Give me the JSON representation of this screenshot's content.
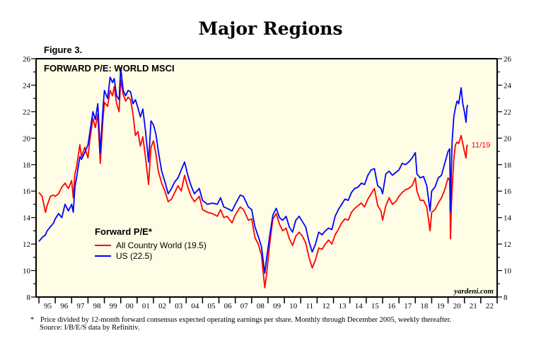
{
  "page": {
    "title": "Major Regions",
    "figure_label": "Figure 3.",
    "footnote_marker": "*",
    "footnote_line1": "Price divided by 12-month forward consensus expected operating earnings per share. Monthly through December 2005, weekly thereafter.",
    "footnote_line2": "Source: I/B/E/S data by Refinitiv."
  },
  "chart_data": {
    "type": "line",
    "title": "FORWARD P/E: WORLD MSCI",
    "xlabel": "",
    "ylabel": "",
    "ylim": [
      8,
      26
    ],
    "xlim": [
      1995,
      2023
    ],
    "y_ticks": [
      8,
      10,
      12,
      14,
      16,
      18,
      20,
      22,
      24,
      26
    ],
    "y_ticks_right": [
      8,
      10,
      12,
      14,
      16,
      18,
      20,
      22,
      24,
      26
    ],
    "x_tick_labels": [
      "95",
      "96",
      "97",
      "98",
      "99",
      "00",
      "01",
      "02",
      "03",
      "04",
      "05",
      "06",
      "07",
      "08",
      "09",
      "10",
      "11",
      "12",
      "13",
      "14",
      "15",
      "16",
      "17",
      "18",
      "19",
      "20",
      "21",
      "22"
    ],
    "grid": false,
    "background": "#fffde6",
    "legend": {
      "title": "Forward P/E*",
      "placement": "center-left",
      "entries": [
        "All Country World (19.5)",
        "US (22.5)"
      ]
    },
    "annotations": [
      {
        "text": "11/19",
        "x": 2021.3,
        "y": 19.5,
        "color": "#ff0000"
      }
    ],
    "watermark": "yardeni.com",
    "series": [
      {
        "name": "All Country World (19.5)",
        "color": "#ff0000",
        "x": [
          1995.0,
          1995.2,
          1995.4,
          1995.5,
          1995.7,
          1995.9,
          1996.0,
          1996.2,
          1996.4,
          1996.6,
          1996.8,
          1997.0,
          1997.1,
          1997.2,
          1997.3,
          1997.5,
          1997.6,
          1997.8,
          1998.0,
          1998.1,
          1998.3,
          1998.45,
          1998.6,
          1998.75,
          1998.9,
          1999.0,
          1999.2,
          1999.35,
          1999.5,
          1999.6,
          1999.75,
          1999.9,
          2000.0,
          2000.15,
          2000.3,
          2000.45,
          2000.6,
          2000.75,
          2000.9,
          2001.05,
          2001.2,
          2001.35,
          2001.5,
          2001.7,
          2001.85,
          2002.0,
          2002.15,
          2002.3,
          2002.5,
          2002.7,
          2002.9,
          2003.1,
          2003.3,
          2003.5,
          2003.7,
          2003.9,
          2004.1,
          2004.3,
          2004.5,
          2004.8,
          2005.0,
          2005.3,
          2005.6,
          2005.9,
          2006.1,
          2006.3,
          2006.5,
          2006.8,
          2007.0,
          2007.3,
          2007.5,
          2007.8,
          2008.0,
          2008.2,
          2008.4,
          2008.6,
          2008.8,
          2008.9,
          2009.1,
          2009.3,
          2009.5,
          2009.7,
          2009.9,
          2010.1,
          2010.3,
          2010.5,
          2010.7,
          2010.9,
          2011.1,
          2011.3,
          2011.5,
          2011.7,
          2011.9,
          2012.1,
          2012.3,
          2012.5,
          2012.7,
          2012.9,
          2013.1,
          2013.3,
          2013.5,
          2013.7,
          2013.9,
          2014.1,
          2014.3,
          2014.5,
          2014.7,
          2014.9,
          2015.1,
          2015.3,
          2015.5,
          2015.7,
          2015.9,
          2016.0,
          2016.2,
          2016.4,
          2016.6,
          2016.8,
          2017.0,
          2017.2,
          2017.4,
          2017.6,
          2017.8,
          2018.0,
          2018.1,
          2018.3,
          2018.5,
          2018.7,
          2018.9,
          2019.0,
          2019.2,
          2019.4,
          2019.6,
          2019.8,
          2020.0,
          2020.1,
          2020.15,
          2020.2,
          2020.25,
          2020.35,
          2020.45,
          2020.55,
          2020.65,
          2020.8,
          2020.9,
          2021.0,
          2021.1,
          2021.15,
          2021.2
        ],
        "values": [
          15.9,
          15.6,
          14.4,
          14.9,
          15.6,
          15.7,
          15.6,
          15.8,
          16.3,
          16.6,
          16.2,
          16.8,
          15.5,
          17.3,
          17.8,
          19.5,
          18.6,
          19.3,
          18.5,
          19.7,
          21.5,
          20.8,
          21.8,
          18.1,
          21.2,
          22.7,
          22.4,
          23.6,
          23.2,
          23.9,
          22.6,
          22.0,
          24.4,
          23.3,
          22.8,
          23.1,
          22.9,
          21.8,
          20.2,
          20.5,
          19.4,
          20.1,
          18.7,
          16.5,
          19.3,
          19.8,
          18.8,
          17.5,
          16.6,
          16.0,
          15.2,
          15.4,
          15.9,
          16.4,
          16.0,
          17.2,
          16.3,
          15.6,
          15.2,
          15.6,
          14.6,
          14.4,
          14.3,
          14.1,
          14.6,
          14.0,
          14.1,
          13.6,
          14.2,
          14.8,
          14.6,
          13.8,
          13.9,
          12.5,
          12.0,
          11.2,
          8.7,
          9.6,
          12.0,
          13.9,
          14.3,
          13.5,
          13.0,
          13.2,
          12.4,
          11.9,
          12.6,
          12.9,
          12.6,
          12.1,
          11.0,
          10.2,
          10.8,
          11.7,
          11.6,
          12.0,
          12.3,
          12.0,
          12.7,
          13.1,
          13.6,
          13.9,
          13.8,
          14.4,
          14.7,
          14.9,
          15.1,
          14.8,
          15.4,
          15.8,
          16.2,
          14.9,
          14.5,
          13.8,
          14.9,
          15.5,
          15.0,
          15.2,
          15.6,
          15.9,
          16.1,
          16.2,
          16.4,
          17.0,
          16.0,
          15.3,
          15.3,
          14.8,
          13.0,
          14.4,
          14.6,
          15.1,
          15.5,
          16.1,
          17.0,
          16.8,
          12.4,
          14.8,
          16.2,
          18.4,
          19.5,
          19.7,
          19.6,
          20.2,
          19.6,
          19.0,
          18.5,
          19.4,
          19.5
        ]
      },
      {
        "name": "US (22.5)",
        "color": "#0000ff",
        "x": [
          1995.0,
          1995.2,
          1995.4,
          1995.5,
          1995.7,
          1995.9,
          1996.0,
          1996.2,
          1996.4,
          1996.6,
          1996.8,
          1997.0,
          1997.1,
          1997.2,
          1997.3,
          1997.5,
          1997.6,
          1997.8,
          1998.0,
          1998.1,
          1998.3,
          1998.45,
          1998.6,
          1998.75,
          1998.9,
          1999.0,
          1999.2,
          1999.35,
          1999.5,
          1999.6,
          1999.75,
          1999.9,
          2000.0,
          2000.15,
          2000.3,
          2000.45,
          2000.6,
          2000.75,
          2000.9,
          2001.05,
          2001.2,
          2001.35,
          2001.5,
          2001.7,
          2001.85,
          2002.0,
          2002.15,
          2002.3,
          2002.5,
          2002.7,
          2002.9,
          2003.1,
          2003.3,
          2003.5,
          2003.7,
          2003.9,
          2004.1,
          2004.3,
          2004.5,
          2004.8,
          2005.0,
          2005.3,
          2005.6,
          2005.9,
          2006.1,
          2006.3,
          2006.5,
          2006.8,
          2007.0,
          2007.3,
          2007.5,
          2007.8,
          2008.0,
          2008.2,
          2008.4,
          2008.6,
          2008.8,
          2008.9,
          2009.1,
          2009.3,
          2009.5,
          2009.7,
          2009.9,
          2010.1,
          2010.3,
          2010.5,
          2010.7,
          2010.9,
          2011.1,
          2011.3,
          2011.5,
          2011.7,
          2011.9,
          2012.1,
          2012.3,
          2012.5,
          2012.7,
          2012.9,
          2013.1,
          2013.3,
          2013.5,
          2013.7,
          2013.9,
          2014.1,
          2014.3,
          2014.5,
          2014.7,
          2014.9,
          2015.1,
          2015.3,
          2015.5,
          2015.7,
          2015.9,
          2016.0,
          2016.2,
          2016.4,
          2016.6,
          2016.8,
          2017.0,
          2017.2,
          2017.4,
          2017.6,
          2017.8,
          2018.0,
          2018.1,
          2018.3,
          2018.5,
          2018.7,
          2018.9,
          2019.0,
          2019.2,
          2019.4,
          2019.6,
          2019.8,
          2020.0,
          2020.1,
          2020.15,
          2020.2,
          2020.25,
          2020.35,
          2020.45,
          2020.55,
          2020.65,
          2020.8,
          2020.9,
          2021.0,
          2021.1,
          2021.15,
          2021.2
        ],
        "values": [
          12.2,
          12.5,
          12.7,
          13.0,
          13.3,
          13.6,
          13.9,
          14.3,
          14.0,
          15.0,
          14.5,
          15.0,
          14.4,
          16.3,
          17.0,
          18.6,
          18.4,
          18.9,
          19.5,
          20.3,
          22.0,
          21.4,
          22.6,
          18.9,
          22.0,
          23.6,
          23.0,
          24.6,
          24.2,
          24.5,
          23.2,
          22.9,
          25.3,
          23.6,
          23.2,
          23.6,
          23.5,
          22.6,
          22.9,
          22.3,
          21.6,
          22.2,
          20.7,
          18.2,
          21.3,
          21.0,
          20.3,
          19.0,
          17.5,
          16.7,
          15.8,
          16.2,
          16.7,
          17.0,
          17.6,
          18.2,
          17.2,
          16.4,
          15.8,
          16.2,
          15.3,
          15.0,
          15.1,
          15.0,
          15.5,
          14.8,
          14.7,
          14.5,
          15.0,
          15.7,
          15.6,
          14.8,
          14.6,
          13.3,
          12.6,
          11.8,
          9.8,
          10.8,
          12.6,
          14.2,
          14.7,
          14.0,
          13.8,
          14.1,
          13.3,
          12.9,
          13.8,
          14.1,
          13.7,
          13.3,
          12.2,
          11.4,
          12.0,
          12.9,
          12.7,
          13.0,
          13.2,
          13.1,
          14.1,
          14.6,
          15.0,
          15.4,
          15.3,
          15.9,
          16.2,
          16.3,
          16.6,
          16.5,
          17.2,
          17.6,
          17.7,
          16.4,
          16.2,
          15.8,
          17.3,
          17.5,
          17.2,
          17.4,
          17.6,
          18.1,
          18.0,
          18.2,
          18.5,
          18.9,
          17.3,
          17.0,
          17.1,
          16.4,
          14.5,
          16.0,
          16.3,
          17.0,
          17.2,
          18.1,
          19.0,
          19.2,
          14.5,
          17.6,
          19.8,
          21.6,
          22.3,
          22.8,
          22.6,
          23.8,
          22.6,
          22.0,
          21.2,
          22.3,
          22.5
        ]
      }
    ]
  }
}
